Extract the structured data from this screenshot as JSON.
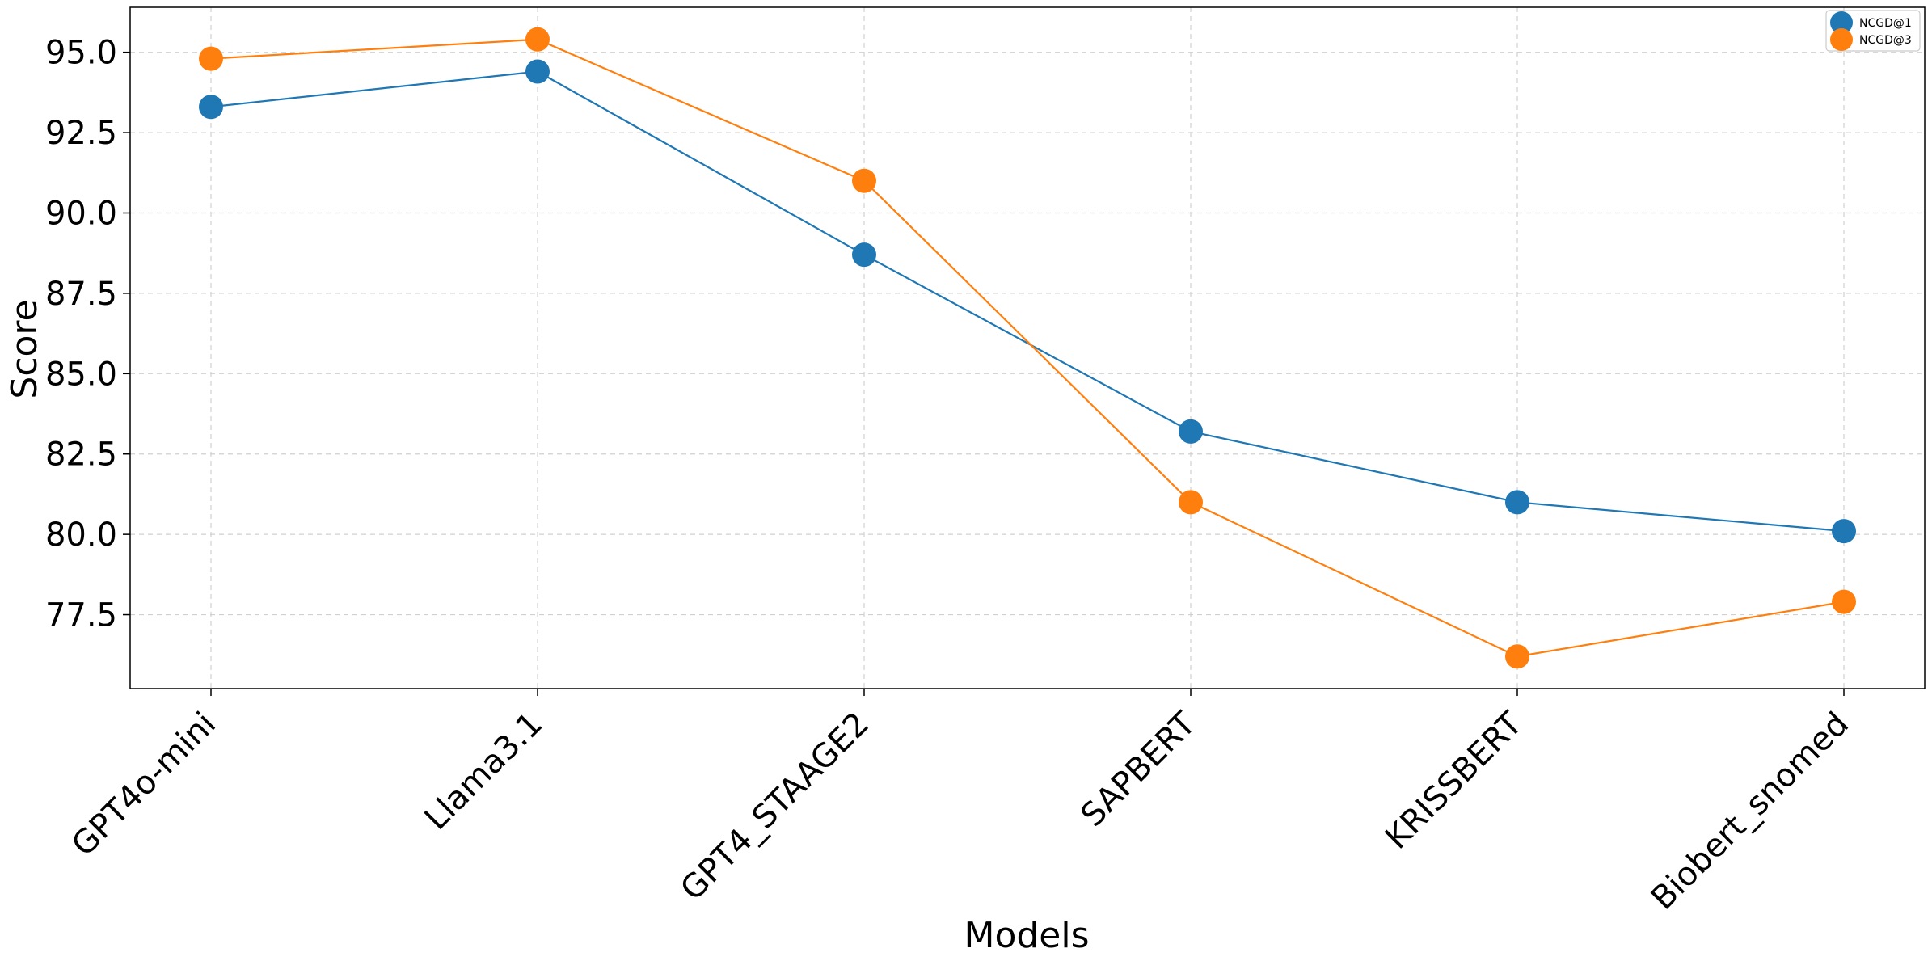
{
  "chart_data": {
    "type": "line",
    "categories": [
      "GPT4o-mini",
      "Llama3.1",
      "GPT4_STAAGE2",
      "SAPBERT",
      "KRISSBERT",
      "Biobert_snomed"
    ],
    "series": [
      {
        "name": "NCGD@1",
        "color": "#1f77b4",
        "values": [
          93.3,
          94.4,
          88.7,
          83.2,
          81.0,
          80.1
        ]
      },
      {
        "name": "NCGD@3",
        "color": "#ff7f0e",
        "values": [
          94.8,
          95.4,
          91.0,
          81.0,
          76.2,
          77.9
        ]
      }
    ],
    "xlabel": "Models",
    "ylabel": "Score",
    "ylim": [
      75.2,
      96.4
    ],
    "yticks": [
      "77.5",
      "80.0",
      "82.5",
      "85.0",
      "87.5",
      "90.0",
      "92.5",
      "95.0"
    ],
    "grid": true,
    "legend_position": "top-right",
    "marker": "circle"
  }
}
